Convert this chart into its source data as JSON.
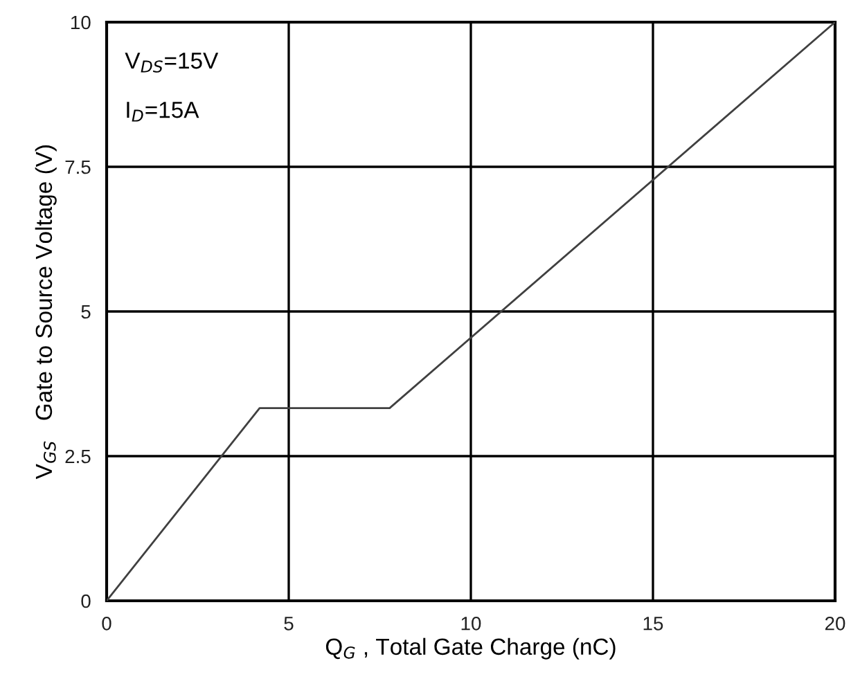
{
  "chart_data": {
    "type": "line",
    "xlabel": "Q$_{G}$ , Total Gate Charge (nC)",
    "ylabel": "V$_{GS}$   Gate to Source Voltage (V)",
    "annotations": [
      "V$_{DS}$=15V",
      "I$_{D}$=15A"
    ],
    "series": [
      {
        "color": "#404040",
        "x": [
          0,
          4.2,
          7.77,
          20
        ],
        "values": [
          0,
          3.33,
          3.33,
          10
        ]
      }
    ],
    "xlim": [
      0,
      20
    ],
    "xticks": [
      0,
      5,
      10,
      15,
      20
    ],
    "ylim": [
      0,
      10
    ],
    "yticks": [
      0,
      2.5,
      5,
      7.5,
      10
    ],
    "grid": true,
    "legend": false,
    "marker": "none",
    "line_style": "solid"
  }
}
